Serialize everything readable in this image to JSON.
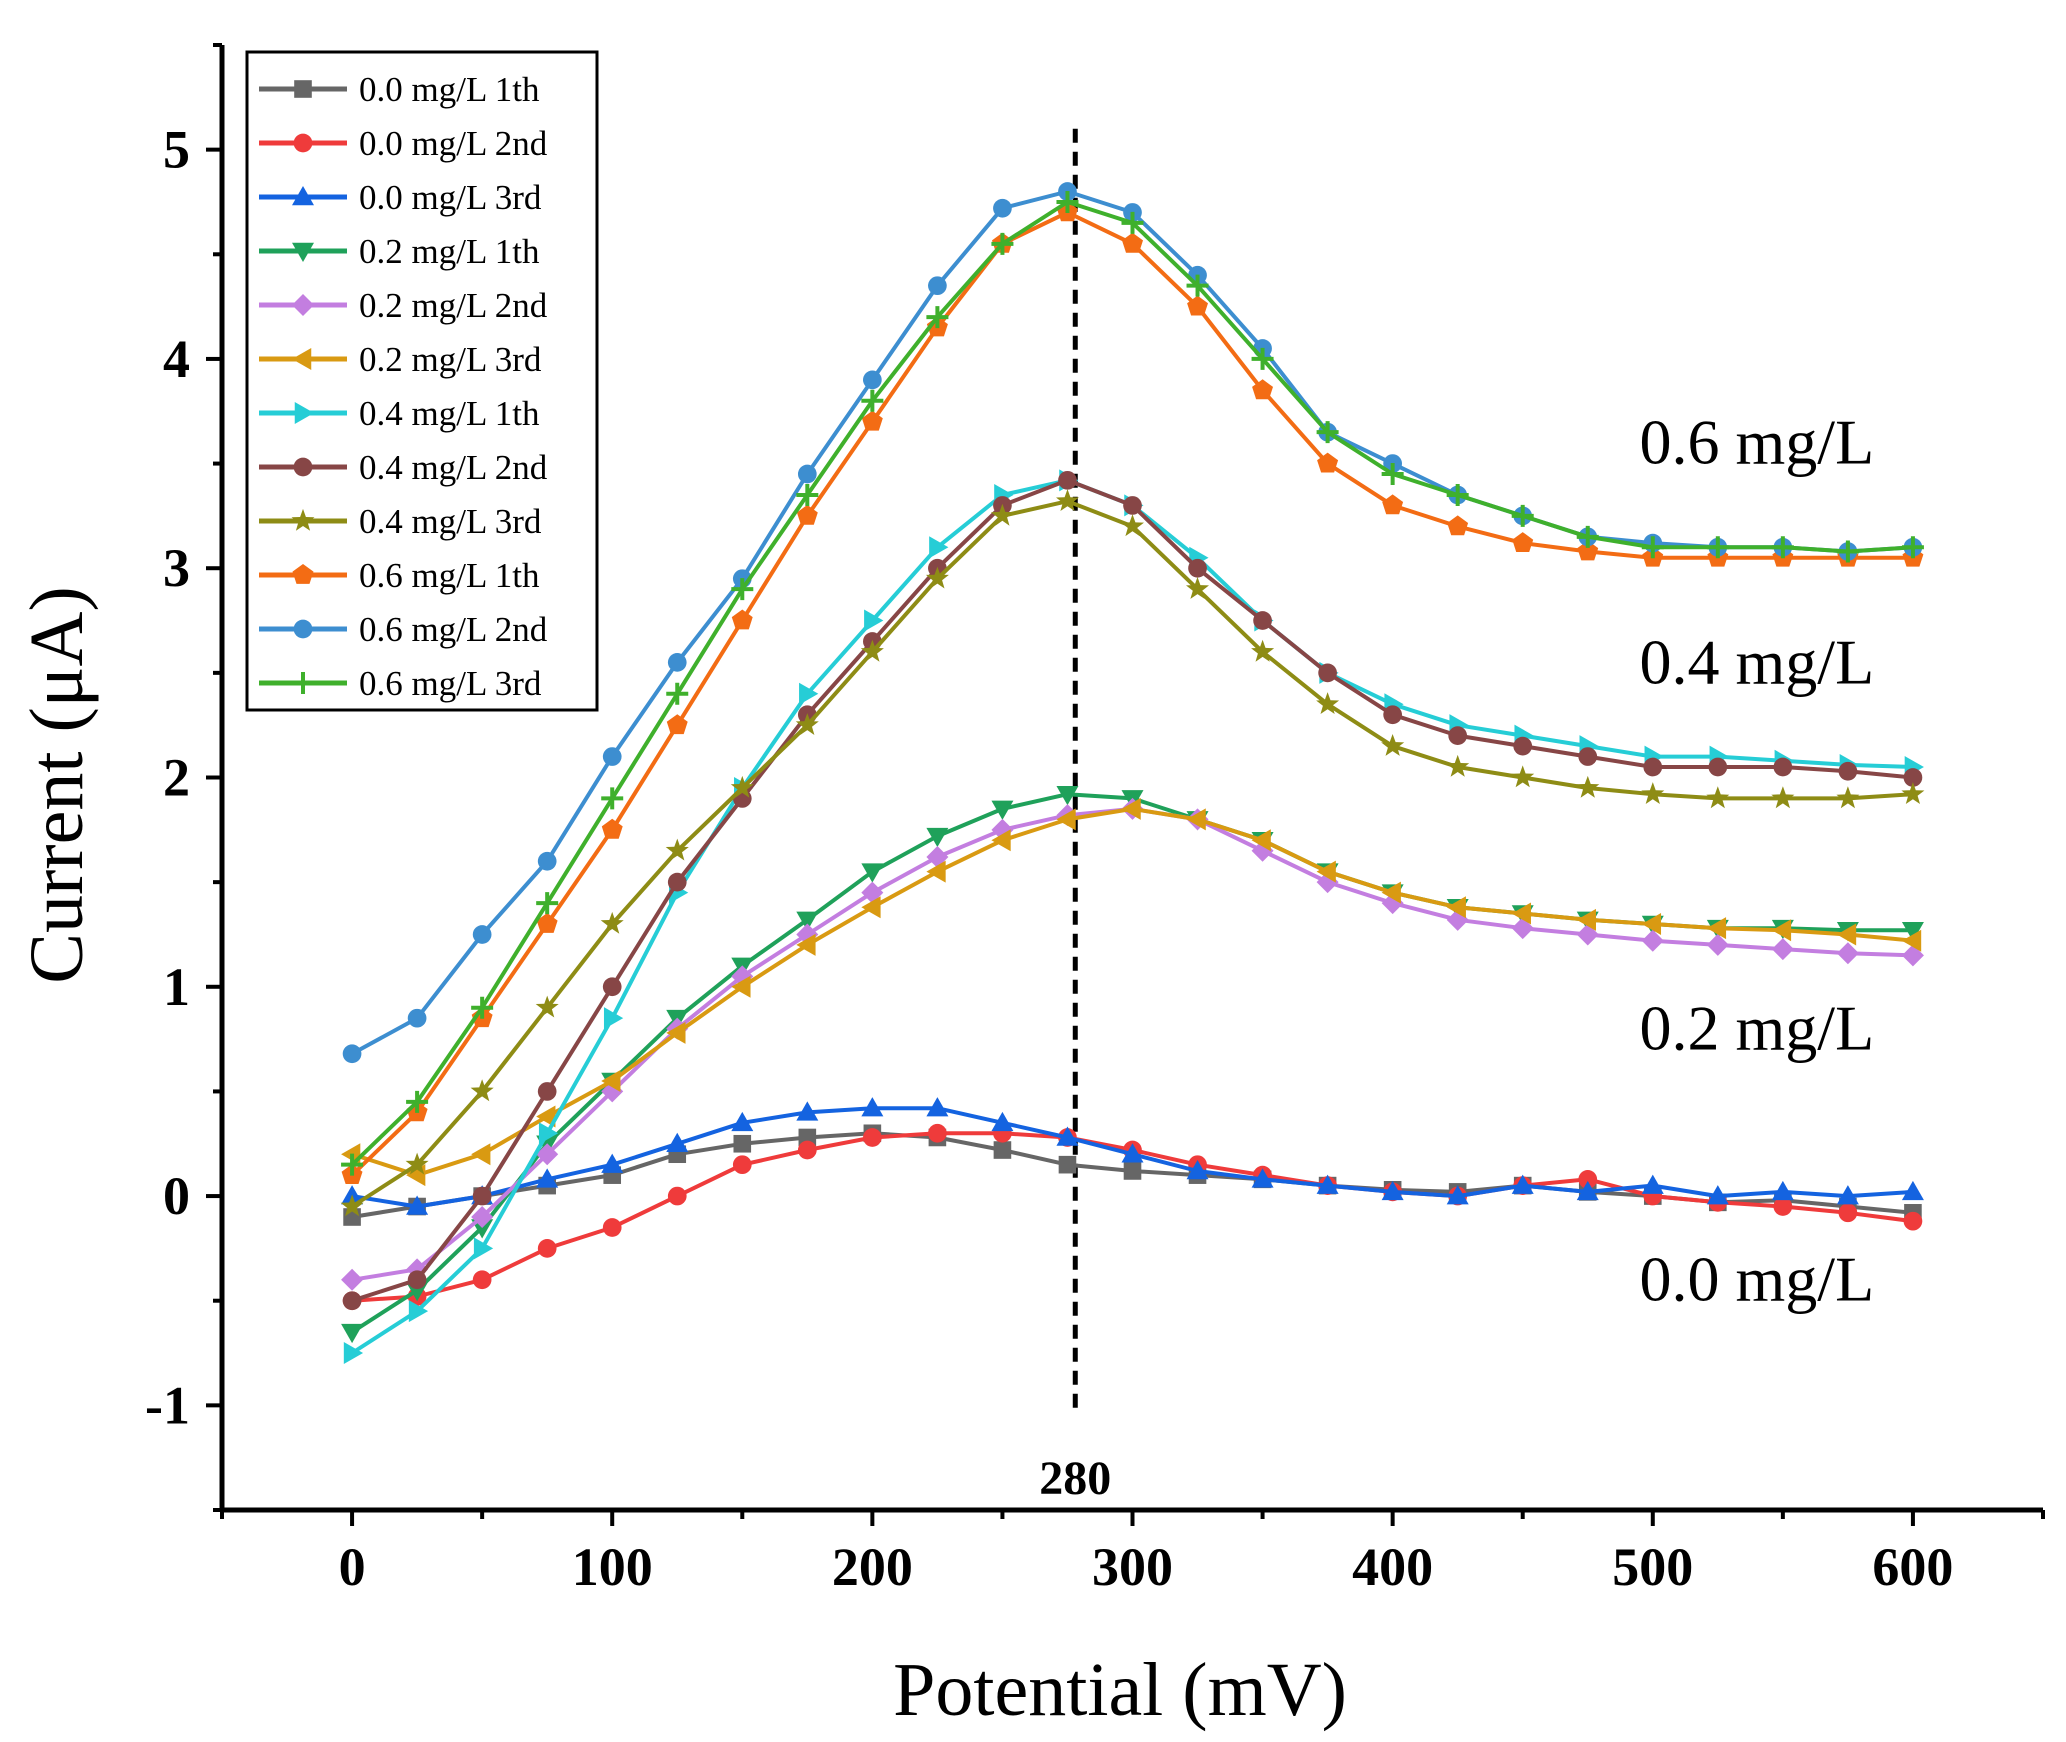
{
  "chart_data": {
    "type": "line",
    "title": "",
    "xlabel": "Potential (mV)",
    "ylabel": "Current (μA)",
    "xlim": [
      -50,
      650
    ],
    "ylim": [
      -1.5,
      5.5
    ],
    "x_ticks": [
      0,
      100,
      200,
      300,
      400,
      500,
      600
    ],
    "y_ticks": [
      -1,
      0,
      1,
      2,
      3,
      4,
      5
    ],
    "x_tick_labels": [
      "0",
      "100",
      "200",
      "300",
      "400",
      "500",
      "600"
    ],
    "y_tick_labels": [
      "-1",
      "0",
      "1",
      "2",
      "3",
      "4",
      "5"
    ],
    "legend_position": "top-left",
    "peak_line": {
      "x": 278,
      "label": "280"
    },
    "group_labels": [
      {
        "text": "0.6 mg/L",
        "x": 540,
        "y": 3.5
      },
      {
        "text": "0.4 mg/L",
        "x": 540,
        "y": 2.45
      },
      {
        "text": "0.2 mg/L",
        "x": 540,
        "y": 0.7
      },
      {
        "text": "0.0 mg/L",
        "x": 540,
        "y": -0.5
      }
    ],
    "x": [
      0,
      25,
      50,
      75,
      100,
      125,
      150,
      175,
      200,
      225,
      250,
      275,
      300,
      325,
      350,
      375,
      400,
      425,
      450,
      475,
      500,
      525,
      550,
      575,
      600
    ],
    "series": [
      {
        "name": "0.0 mg/L 1th",
        "color": "#666666",
        "marker": "square",
        "values": [
          -0.1,
          -0.05,
          0.0,
          0.05,
          0.1,
          0.2,
          0.25,
          0.28,
          0.3,
          0.28,
          0.22,
          0.15,
          0.12,
          0.1,
          0.08,
          0.05,
          0.03,
          0.02,
          0.05,
          0.02,
          0.0,
          -0.03,
          -0.02,
          -0.05,
          -0.08
        ]
      },
      {
        "name": "0.0 mg/L 2nd",
        "color": "#ef3b3b",
        "marker": "circle",
        "values": [
          -0.5,
          -0.48,
          -0.4,
          -0.25,
          -0.15,
          0.0,
          0.15,
          0.22,
          0.28,
          0.3,
          0.3,
          0.28,
          0.22,
          0.15,
          0.1,
          0.05,
          0.02,
          0.0,
          0.05,
          0.08,
          0.0,
          -0.03,
          -0.05,
          -0.08,
          -0.12
        ]
      },
      {
        "name": "0.0 mg/L 3rd",
        "color": "#1463e0",
        "marker": "triangle-up",
        "values": [
          0.0,
          -0.05,
          0.0,
          0.08,
          0.15,
          0.25,
          0.35,
          0.4,
          0.42,
          0.42,
          0.35,
          0.28,
          0.2,
          0.12,
          0.08,
          0.05,
          0.02,
          0.0,
          0.05,
          0.02,
          0.05,
          0.0,
          0.02,
          0.0,
          0.02
        ]
      },
      {
        "name": "0.2 mg/L 1th",
        "color": "#1fa15a",
        "marker": "triangle-down",
        "values": [
          -0.65,
          -0.45,
          -0.15,
          0.25,
          0.55,
          0.85,
          1.1,
          1.32,
          1.55,
          1.72,
          1.85,
          1.92,
          1.9,
          1.8,
          1.7,
          1.55,
          1.45,
          1.38,
          1.35,
          1.32,
          1.3,
          1.28,
          1.28,
          1.27,
          1.27
        ]
      },
      {
        "name": "0.2 mg/L 2nd",
        "color": "#c37ee0",
        "marker": "diamond",
        "values": [
          -0.4,
          -0.35,
          -0.1,
          0.2,
          0.5,
          0.8,
          1.05,
          1.25,
          1.45,
          1.62,
          1.75,
          1.82,
          1.85,
          1.8,
          1.65,
          1.5,
          1.4,
          1.32,
          1.28,
          1.25,
          1.22,
          1.2,
          1.18,
          1.16,
          1.15
        ]
      },
      {
        "name": "0.2 mg/L 3rd",
        "color": "#d99a12",
        "marker": "triangle-left",
        "values": [
          0.2,
          0.1,
          0.2,
          0.38,
          0.55,
          0.78,
          1.0,
          1.2,
          1.38,
          1.55,
          1.7,
          1.8,
          1.85,
          1.8,
          1.7,
          1.55,
          1.45,
          1.38,
          1.35,
          1.32,
          1.3,
          1.28,
          1.27,
          1.25,
          1.22
        ]
      },
      {
        "name": "0.4 mg/L 1th",
        "color": "#26cdd6",
        "marker": "triangle-right",
        "values": [
          -0.75,
          -0.55,
          -0.25,
          0.3,
          0.85,
          1.45,
          1.95,
          2.4,
          2.75,
          3.1,
          3.35,
          3.42,
          3.3,
          3.05,
          2.75,
          2.5,
          2.35,
          2.25,
          2.2,
          2.15,
          2.1,
          2.1,
          2.08,
          2.06,
          2.05
        ]
      },
      {
        "name": "0.4 mg/L 2nd",
        "color": "#874646",
        "marker": "circle",
        "values": [
          -0.5,
          -0.4,
          0.0,
          0.5,
          1.0,
          1.5,
          1.9,
          2.3,
          2.65,
          3.0,
          3.3,
          3.42,
          3.3,
          3.0,
          2.75,
          2.5,
          2.3,
          2.2,
          2.15,
          2.1,
          2.05,
          2.05,
          2.05,
          2.03,
          2.0
        ]
      },
      {
        "name": "0.4 mg/L 3rd",
        "color": "#8e8c15",
        "marker": "star",
        "values": [
          -0.05,
          0.15,
          0.5,
          0.9,
          1.3,
          1.65,
          1.95,
          2.25,
          2.6,
          2.95,
          3.25,
          3.32,
          3.2,
          2.9,
          2.6,
          2.35,
          2.15,
          2.05,
          2.0,
          1.95,
          1.92,
          1.9,
          1.9,
          1.9,
          1.92
        ]
      },
      {
        "name": "0.6 mg/L 1th",
        "color": "#f36c14",
        "marker": "pentagon",
        "values": [
          0.1,
          0.4,
          0.85,
          1.3,
          1.75,
          2.25,
          2.75,
          3.25,
          3.7,
          4.15,
          4.55,
          4.7,
          4.55,
          4.25,
          3.85,
          3.5,
          3.3,
          3.2,
          3.12,
          3.08,
          3.05,
          3.05,
          3.05,
          3.05,
          3.05
        ]
      },
      {
        "name": "0.6 mg/L 2nd",
        "color": "#3d8ed0",
        "marker": "circle",
        "values": [
          0.68,
          0.85,
          1.25,
          1.6,
          2.1,
          2.55,
          2.95,
          3.45,
          3.9,
          4.35,
          4.72,
          4.8,
          4.7,
          4.4,
          4.05,
          3.65,
          3.5,
          3.35,
          3.25,
          3.15,
          3.12,
          3.1,
          3.1,
          3.08,
          3.1
        ]
      },
      {
        "name": "0.6 mg/L 3rd",
        "color": "#3fb02c",
        "marker": "plus",
        "values": [
          0.15,
          0.45,
          0.9,
          1.4,
          1.9,
          2.4,
          2.9,
          3.35,
          3.8,
          4.2,
          4.55,
          4.75,
          4.65,
          4.35,
          4.0,
          3.65,
          3.45,
          3.35,
          3.25,
          3.15,
          3.1,
          3.1,
          3.1,
          3.08,
          3.1
        ]
      }
    ]
  }
}
